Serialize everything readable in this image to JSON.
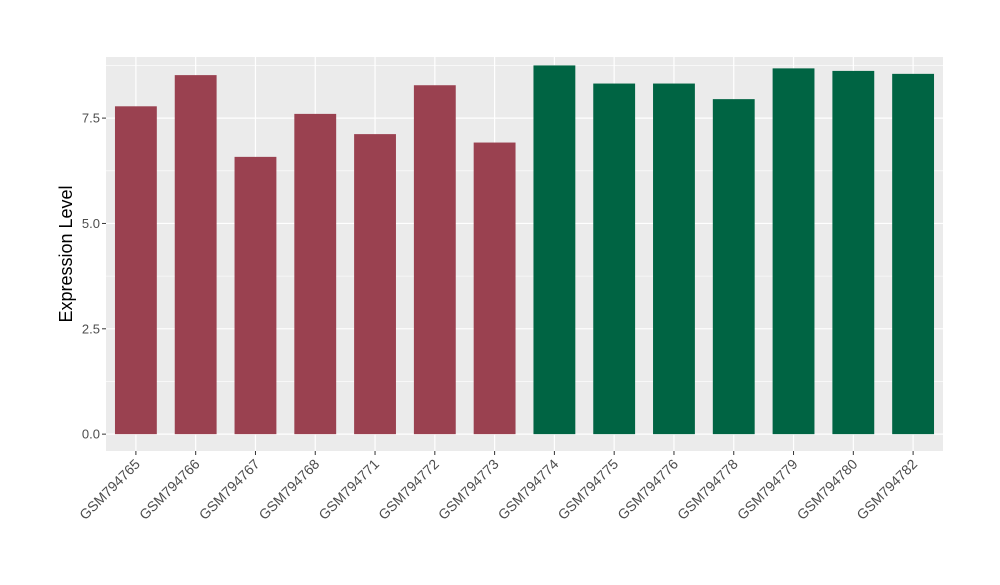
{
  "chart_data": {
    "type": "bar",
    "ylabel": "Expression Level",
    "xlabel": "",
    "ylim": [
      -0.4,
      8.95
    ],
    "yticks": [
      0.0,
      2.5,
      5.0,
      7.5
    ],
    "ytick_labels": [
      "0.0",
      "2.5",
      "5.0",
      "7.5"
    ],
    "grid": true,
    "legend": "none",
    "categories": [
      "GSM794765",
      "GSM794766",
      "GSM794767",
      "GSM794768",
      "GSM794771",
      "GSM794772",
      "GSM794773",
      "GSM794774",
      "GSM794775",
      "GSM794776",
      "GSM794778",
      "GSM794779",
      "GSM794780",
      "GSM794782"
    ],
    "values": [
      7.78,
      8.52,
      6.58,
      7.6,
      7.12,
      8.28,
      6.92,
      8.75,
      8.32,
      8.32,
      7.95,
      8.68,
      8.62,
      8.55
    ],
    "groups": [
      0,
      0,
      0,
      0,
      0,
      0,
      0,
      1,
      1,
      1,
      1,
      1,
      1,
      1
    ],
    "colors": {
      "group_0": "#9a4150",
      "group_1": "#006443",
      "panel_bg": "#ebebeb",
      "grid": "#ffffff",
      "text": "#4d4d4d",
      "title_text": "#000000"
    }
  }
}
